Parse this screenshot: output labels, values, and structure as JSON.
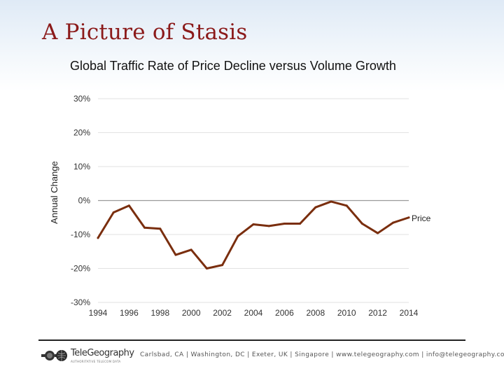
{
  "slide": {
    "title": "A Picture of Stasis"
  },
  "footer": {
    "logo_name": "TeleGeography",
    "logo_tagline": "AUTHORITATIVE TELECOM DATA",
    "contact": "Carlsbad, CA | Washington, DC | Exeter, UK | Singapore | www.telegeography.com | info@telegeography.com"
  },
  "colors": {
    "title": "#8b1a1a",
    "line": "#7a2e0e",
    "grid": "#e2e2e2",
    "zero_line": "#9a9a9a"
  },
  "chart_data": {
    "type": "line",
    "title": "Global Traffic Rate of Price Decline versus Volume Growth",
    "xlabel": "",
    "ylabel": "Annual Change",
    "ylim": [
      -30,
      30
    ],
    "xlim": [
      1994,
      2014
    ],
    "yticks": [
      30,
      20,
      10,
      0,
      -10,
      -20,
      -30
    ],
    "ytick_labels": [
      "30%",
      "20%",
      "10%",
      "0%",
      "-10%",
      "-20%",
      "-30%"
    ],
    "xticks": [
      "1994",
      "1996",
      "1998",
      "2000",
      "2002",
      "2004",
      "2006",
      "2008",
      "2010",
      "2012",
      "2014"
    ],
    "grid": true,
    "series": [
      {
        "name": "Price",
        "x": [
          1994,
          1995,
          1996,
          1997,
          1998,
          1999,
          2000,
          2001,
          2002,
          2003,
          2004,
          2005,
          2006,
          2007,
          2008,
          2009,
          2010,
          2011,
          2012,
          2013,
          2014
        ],
        "values": [
          -11,
          -3.5,
          -1.5,
          -8,
          -8.3,
          -16,
          -14.5,
          -20,
          -19,
          -10.5,
          -7,
          -7.5,
          -6.8,
          -6.8,
          -2,
          -0.3,
          -1.5,
          -6.8,
          -9.6,
          -6.5,
          -5
        ]
      }
    ]
  }
}
